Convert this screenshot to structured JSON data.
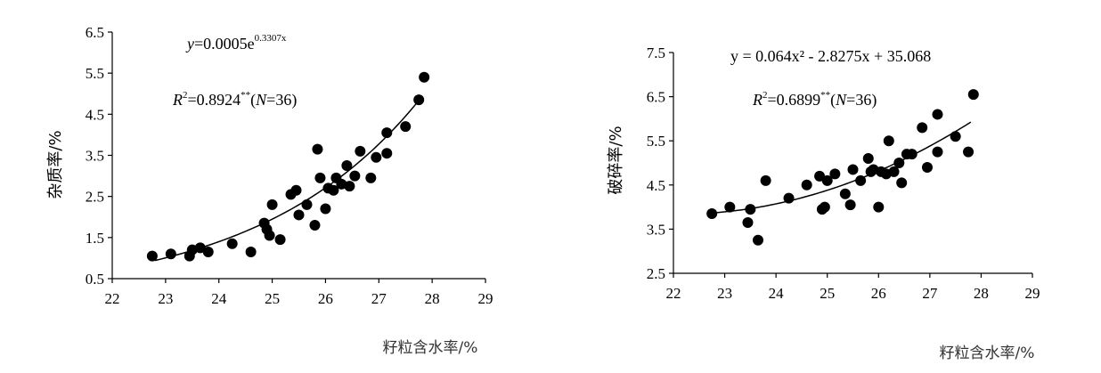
{
  "chart_data": [
    {
      "type": "scatter",
      "ylabel": "杂质率/%",
      "xlabel": "籽粒含水率/%",
      "xlim": [
        22,
        29
      ],
      "ylim": [
        0.5,
        6.5
      ],
      "x_ticks": [
        "22",
        "23",
        "24",
        "25",
        "26",
        "27",
        "28",
        "29"
      ],
      "y_ticks": [
        "0.5",
        "1.5",
        "2.5",
        "3.5",
        "4.5",
        "5.5",
        "6.5"
      ],
      "equation": {
        "lhs": "y",
        "eq": "=0.0005e",
        "exp": "0.3307x"
      },
      "r2": {
        "lhs": "R",
        "sup": "2",
        "value": "=0.8924",
        "stars": "**",
        "n_open": "(",
        "n": "N",
        "n_close": "=36)"
      },
      "fit": {
        "kind": "exp",
        "a": 0.0005,
        "b": 0.3307,
        "x_range": [
          22.8,
          27.8
        ]
      },
      "points": [
        [
          22.75,
          1.05
        ],
        [
          23.1,
          1.1
        ],
        [
          23.45,
          1.05
        ],
        [
          23.5,
          1.2
        ],
        [
          23.65,
          1.25
        ],
        [
          23.8,
          1.15
        ],
        [
          24.25,
          1.35
        ],
        [
          24.6,
          1.15
        ],
        [
          24.85,
          1.85
        ],
        [
          24.9,
          1.7
        ],
        [
          24.95,
          1.55
        ],
        [
          25.0,
          2.3
        ],
        [
          25.15,
          1.45
        ],
        [
          25.35,
          2.55
        ],
        [
          25.45,
          2.65
        ],
        [
          25.5,
          2.05
        ],
        [
          25.65,
          2.3
        ],
        [
          25.8,
          1.8
        ],
        [
          25.85,
          3.65
        ],
        [
          25.9,
          2.95
        ],
        [
          26.0,
          2.2
        ],
        [
          26.05,
          2.7
        ],
        [
          26.15,
          2.65
        ],
        [
          26.2,
          2.95
        ],
        [
          26.3,
          2.8
        ],
        [
          26.4,
          3.25
        ],
        [
          26.45,
          2.75
        ],
        [
          26.55,
          3.0
        ],
        [
          26.65,
          3.6
        ],
        [
          26.85,
          2.95
        ],
        [
          26.95,
          3.45
        ],
        [
          27.15,
          4.05
        ],
        [
          27.15,
          3.55
        ],
        [
          27.5,
          4.2
        ],
        [
          27.75,
          4.85
        ],
        [
          27.85,
          5.4
        ]
      ]
    },
    {
      "type": "scatter",
      "ylabel": "破碎率/%",
      "xlabel": "籽粒含水率/%",
      "xlim": [
        22,
        29
      ],
      "ylim": [
        2.5,
        7.5
      ],
      "x_ticks": [
        "22",
        "23",
        "24",
        "25",
        "26",
        "27",
        "28",
        "29"
      ],
      "y_ticks": [
        "2.5",
        "3.5",
        "4.5",
        "5.5",
        "6.5",
        "7.5"
      ],
      "equation": {
        "text": "y = 0.064x² - 2.8275x + 35.068"
      },
      "r2": {
        "lhs": "R",
        "sup": "2",
        "value": "=0.6899",
        "stars": "**",
        "n_open": "(",
        "n": "N",
        "n_close": "=36)"
      },
      "fit": {
        "kind": "poly2",
        "a": 0.064,
        "b": -2.8275,
        "c": 35.068,
        "x_range": [
          22.8,
          27.8
        ]
      },
      "points": [
        [
          22.75,
          3.85
        ],
        [
          23.1,
          4.0
        ],
        [
          23.45,
          3.65
        ],
        [
          23.5,
          3.95
        ],
        [
          23.65,
          3.25
        ],
        [
          23.8,
          4.6
        ],
        [
          24.25,
          4.2
        ],
        [
          24.6,
          4.5
        ],
        [
          24.85,
          4.7
        ],
        [
          24.9,
          3.95
        ],
        [
          24.95,
          4.0
        ],
        [
          25.0,
          4.6
        ],
        [
          25.15,
          4.75
        ],
        [
          25.35,
          4.3
        ],
        [
          25.45,
          4.05
        ],
        [
          25.5,
          4.85
        ],
        [
          25.65,
          4.6
        ],
        [
          25.8,
          5.1
        ],
        [
          25.85,
          4.8
        ],
        [
          25.9,
          4.85
        ],
        [
          26.0,
          4.0
        ],
        [
          26.05,
          4.8
        ],
        [
          26.15,
          4.75
        ],
        [
          26.2,
          5.5
        ],
        [
          26.3,
          4.8
        ],
        [
          26.4,
          5.0
        ],
        [
          26.45,
          4.55
        ],
        [
          26.55,
          5.2
        ],
        [
          26.65,
          5.2
        ],
        [
          26.85,
          5.8
        ],
        [
          26.95,
          4.9
        ],
        [
          27.15,
          6.1
        ],
        [
          27.15,
          5.25
        ],
        [
          27.5,
          5.6
        ],
        [
          27.75,
          5.25
        ],
        [
          27.85,
          6.55
        ]
      ]
    }
  ]
}
